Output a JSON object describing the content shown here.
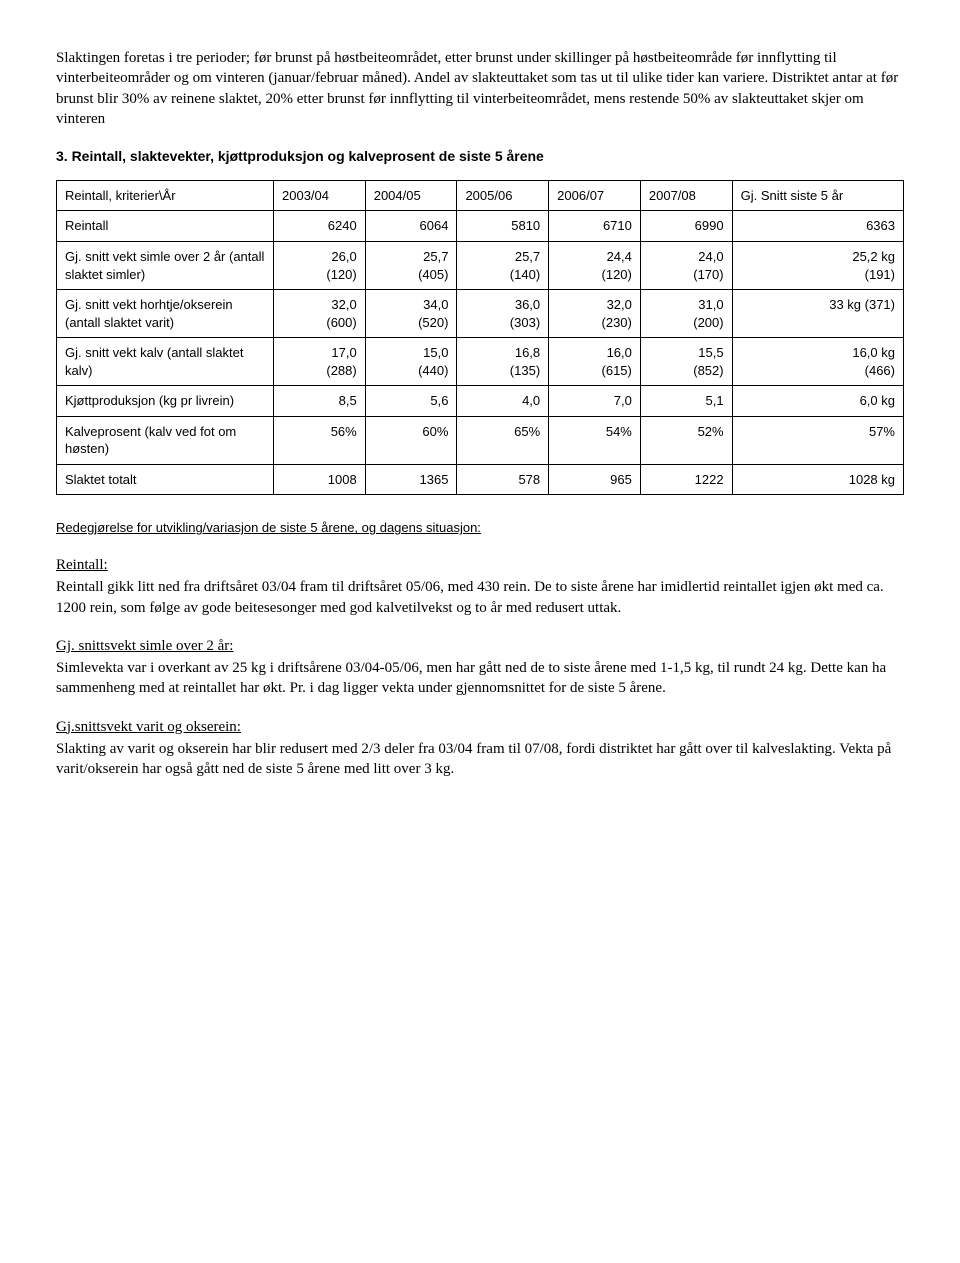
{
  "intro": {
    "p1": "Slaktingen foretas i tre perioder; før brunst på høstbeiteområdet, etter brunst under skillinger på høstbeiteområde før innflytting til vinterbeiteområder og om vinteren (januar/februar måned). Andel av slakteuttaket som tas ut til ulike tider kan variere. Distriktet antar at før brunst blir 30% av reinene slaktet, 20% etter brunst før innflytting til vinterbeiteområdet, mens restende 50% av slakteuttaket skjer om vinteren"
  },
  "section3_title": "3. Reintall, slaktevekter, kjøttproduksjon og kalveprosent de siste 5 årene",
  "table": {
    "header": {
      "col0": "Reintall, kriterier\\År",
      "col1": "2003/04",
      "col2": "2004/05",
      "col3": "2005/06",
      "col4": "2006/07",
      "col5": "2007/08",
      "col6": "Gj. Snitt siste 5 år"
    },
    "rows": [
      {
        "label": "Reintall",
        "c1": "6240",
        "c2": "6064",
        "c3": "5810",
        "c4": "6710",
        "c5": "6990",
        "c6": "6363"
      },
      {
        "label": "Gj. snitt vekt simle over 2 år (antall slaktet simler)",
        "c1": "26,0\n(120)",
        "c2": "25,7\n(405)",
        "c3": "25,7\n(140)",
        "c4": "24,4\n(120)",
        "c5": "24,0\n(170)",
        "c6": "25,2 kg\n(191)"
      },
      {
        "label": "Gj. snitt vekt horhtje/okserein (antall slaktet varit)",
        "c1": "32,0\n(600)",
        "c2": "34,0\n(520)",
        "c3": "36,0\n(303)",
        "c4": "32,0\n(230)",
        "c5": "31,0\n(200)",
        "c6": "33 kg (371)"
      },
      {
        "label": "Gj. snitt vekt kalv (antall slaktet kalv)",
        "c1": "17,0\n(288)",
        "c2": "15,0\n(440)",
        "c3": "16,8\n(135)",
        "c4": "16,0\n(615)",
        "c5": "15,5\n(852)",
        "c6": "16,0 kg\n(466)"
      },
      {
        "label": "Kjøttproduksjon (kg pr livrein)",
        "c1": "8,5",
        "c2": "5,6",
        "c3": "4,0",
        "c4": "7,0",
        "c5": "5,1",
        "c6": "6,0 kg"
      },
      {
        "label": "Kalveprosent (kalv ved fot om høsten)",
        "c1": "56%",
        "c2": "60%",
        "c3": "65%",
        "c4": "54%",
        "c5": "52%",
        "c6": "57%"
      },
      {
        "label": "Slaktet totalt",
        "c1": "1008",
        "c2": "1365",
        "c3": "578",
        "c4": "965",
        "c5": "1222",
        "c6": "1028 kg"
      }
    ]
  },
  "redeg_title": "Redegjørelse for utvikling/variasjon de siste 5 årene, og dagens situasjon:",
  "sub1_title": "Reintall:",
  "sub1_body": "Reintall gikk litt ned fra driftsåret 03/04 fram til driftsåret 05/06, med 430 rein. De to siste årene har imidlertid reintallet igjen økt med ca. 1200 rein, som følge av gode beitesesonger med god kalvetilvekst og to år med redusert uttak.",
  "sub2_title": "Gj. snittsvekt simle over 2 år:",
  "sub2_body": "Simlevekta var i overkant av 25 kg i driftsårene 03/04-05/06, men har gått ned de to siste årene med 1-1,5 kg, til rundt 24 kg. Dette kan ha sammenheng med at reintallet har økt. Pr. i dag ligger vekta under gjennomsnittet for de siste 5 årene.",
  "sub3_title": "Gj.snittsvekt varit og okserein:",
  "sub3_body": "Slakting av varit og okserein har blir redusert med 2/3 deler fra 03/04 fram til 07/08, fordi distriktet har gått over til kalveslakting. Vekta på varit/okserein har også gått ned de siste 5 årene med litt over 3 kg."
}
